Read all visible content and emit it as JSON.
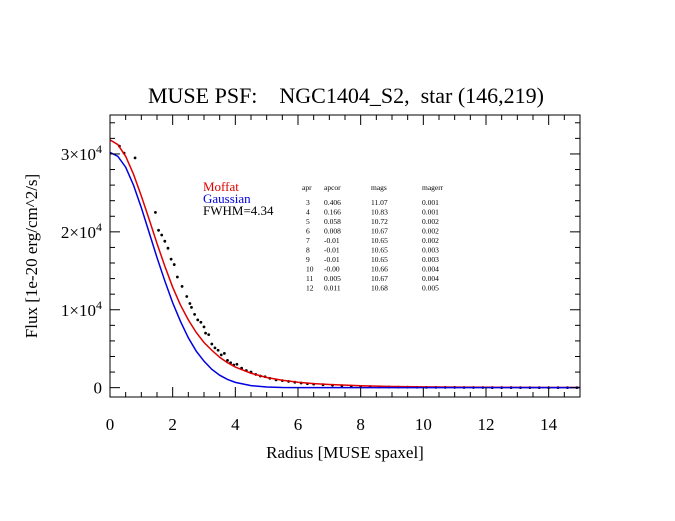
{
  "chart_data": {
    "type": "scatter",
    "title": "MUSE PSF:    NGC1404_S2,  star (146,219)",
    "xlabel": "Radius [MUSE spaxel]",
    "ylabel": "Flux [1e-20 erg/cm^2/s]",
    "xlim": [
      0,
      15
    ],
    "ylim": [
      -1200,
      35000
    ],
    "x_ticks": [
      0,
      2,
      4,
      6,
      8,
      10,
      12,
      14
    ],
    "y_ticks": [
      {
        "value": 0,
        "label": "0",
        "exp": ""
      },
      {
        "value": 10000,
        "label": "1×10",
        "exp": "4"
      },
      {
        "value": 20000,
        "label": "2×10",
        "exp": "4"
      },
      {
        "value": 30000,
        "label": "3×10",
        "exp": "4"
      }
    ],
    "grid": false,
    "legend_position": "upper-middle-left",
    "series": [
      {
        "name": "Moffat",
        "color": "#e00000",
        "kind": "line",
        "x": [
          0,
          0.25,
          0.5,
          0.75,
          1.0,
          1.25,
          1.5,
          1.75,
          2.0,
          2.25,
          2.5,
          2.75,
          3.0,
          3.25,
          3.5,
          3.75,
          4.0,
          4.5,
          5.0,
          5.5,
          6.0,
          6.5,
          7.0,
          8.0,
          9.0,
          10.0,
          11.0,
          12.0,
          13.0,
          14.0,
          15.0
        ],
        "y": [
          31800,
          31200,
          29700,
          27400,
          24600,
          21600,
          18500,
          15600,
          12900,
          10600,
          8700,
          7100,
          5800,
          4800,
          3900,
          3200,
          2650,
          1850,
          1300,
          950,
          700,
          520,
          400,
          240,
          150,
          100,
          70,
          50,
          35,
          25,
          20
        ]
      },
      {
        "name": "Gaussian",
        "color": "#0000e0",
        "kind": "line",
        "x": [
          0,
          0.25,
          0.5,
          0.75,
          1.0,
          1.25,
          1.5,
          1.75,
          2.0,
          2.25,
          2.5,
          2.75,
          3.0,
          3.25,
          3.5,
          3.75,
          4.0,
          4.5,
          5.0,
          5.5,
          6.0,
          6.5,
          7.0,
          8.0,
          9.0,
          10.0,
          11.0,
          12.0,
          13.0,
          14.0,
          15.0
        ],
        "y": [
          30200,
          29700,
          28300,
          26000,
          23100,
          19900,
          16700,
          13700,
          10900,
          8500,
          6400,
          4700,
          3400,
          2350,
          1600,
          1050,
          680,
          260,
          90,
          25,
          6,
          0,
          0,
          0,
          0,
          0,
          0,
          0,
          0,
          0,
          0
        ]
      },
      {
        "name": "data",
        "color": "#000000",
        "kind": "points",
        "points": [
          [
            0.3,
            31000
          ],
          [
            0.45,
            30100
          ],
          [
            0.8,
            29500
          ],
          [
            1.45,
            22500
          ],
          [
            1.55,
            20200
          ],
          [
            1.65,
            19600
          ],
          [
            1.75,
            18800
          ],
          [
            1.85,
            17900
          ],
          [
            1.95,
            16500
          ],
          [
            2.05,
            15800
          ],
          [
            2.15,
            14200
          ],
          [
            2.3,
            13000
          ],
          [
            2.45,
            11700
          ],
          [
            2.55,
            10800
          ],
          [
            2.6,
            10300
          ],
          [
            2.7,
            9400
          ],
          [
            2.8,
            8700
          ],
          [
            2.9,
            8400
          ],
          [
            3.0,
            7800
          ],
          [
            3.05,
            7000
          ],
          [
            3.15,
            6800
          ],
          [
            3.25,
            5600
          ],
          [
            3.35,
            5100
          ],
          [
            3.45,
            4800
          ],
          [
            3.55,
            4200
          ],
          [
            3.65,
            4400
          ],
          [
            3.75,
            3500
          ],
          [
            3.85,
            3200
          ],
          [
            3.95,
            2900
          ],
          [
            4.05,
            3000
          ],
          [
            4.2,
            2500
          ],
          [
            4.35,
            2200
          ],
          [
            4.5,
            2000
          ],
          [
            4.65,
            1700
          ],
          [
            4.8,
            1500
          ],
          [
            4.95,
            1400
          ],
          [
            5.1,
            1200
          ],
          [
            5.3,
            1000
          ],
          [
            5.5,
            900
          ],
          [
            5.7,
            800
          ],
          [
            5.9,
            700
          ],
          [
            6.1,
            600
          ],
          [
            6.3,
            500
          ],
          [
            6.5,
            450
          ],
          [
            6.8,
            380
          ],
          [
            7.1,
            300
          ],
          [
            7.4,
            250
          ],
          [
            7.7,
            200
          ],
          [
            8.0,
            150
          ],
          [
            8.3,
            130
          ],
          [
            8.6,
            100
          ],
          [
            8.9,
            80
          ],
          [
            9.2,
            70
          ],
          [
            9.5,
            60
          ],
          [
            9.8,
            50
          ],
          [
            10.1,
            40
          ],
          [
            10.4,
            40
          ],
          [
            10.7,
            30
          ],
          [
            11.0,
            30
          ],
          [
            11.3,
            20
          ],
          [
            11.6,
            20
          ],
          [
            11.9,
            20
          ],
          [
            12.2,
            10
          ],
          [
            12.5,
            10
          ],
          [
            12.8,
            10
          ],
          [
            13.1,
            0
          ],
          [
            13.4,
            0
          ],
          [
            13.7,
            0
          ],
          [
            14.0,
            0
          ],
          [
            14.3,
            0
          ],
          [
            14.6,
            0
          ],
          [
            14.9,
            0
          ]
        ]
      }
    ],
    "annotations": {
      "legend": [
        {
          "text": "Moffat",
          "color": "#e00000"
        },
        {
          "text": "Gaussian",
          "color": "#0000e0"
        },
        {
          "text": "FWHM=4.34",
          "color": "#000000"
        }
      ],
      "table_headers": [
        "apr",
        "apcor",
        "mags",
        "magerr"
      ],
      "table_rows": [
        [
          "3",
          "0.406",
          "11.07",
          "0.001"
        ],
        [
          "4",
          "0.166",
          "10.83",
          "0.001"
        ],
        [
          "5",
          "0.058",
          "10.72",
          "0.002"
        ],
        [
          "6",
          "0.008",
          "10.67",
          "0.002"
        ],
        [
          "7",
          "-0.01",
          "10.65",
          "0.002"
        ],
        [
          "8",
          "-0.01",
          "10.65",
          "0.003"
        ],
        [
          "9",
          "-0.01",
          "10.65",
          "0.003"
        ],
        [
          "10",
          "-0.00",
          "10.66",
          "0.004"
        ],
        [
          "11",
          "0.005",
          "10.67",
          "0.004"
        ],
        [
          "12",
          "0.011",
          "10.68",
          "0.005"
        ]
      ]
    }
  }
}
